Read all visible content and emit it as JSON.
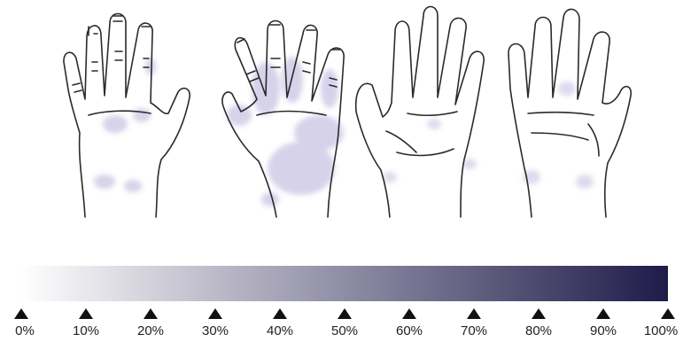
{
  "colors": {
    "scale_start": "#ffffff",
    "scale_end": "#1f1b4a",
    "outline": "#2a2a2a",
    "shading": "#cfcbe6"
  },
  "hands": [
    {
      "view": "left-dorsal",
      "icon": "hand-back-left-icon"
    },
    {
      "view": "right-dorsal",
      "icon": "hand-back-right-icon"
    },
    {
      "view": "left-palmar",
      "icon": "hand-palm-left-icon"
    },
    {
      "view": "right-palmar",
      "icon": "hand-palm-right-icon"
    }
  ],
  "scale": {
    "ticks": [
      {
        "value": 0,
        "label": "0%"
      },
      {
        "value": 10,
        "label": "10%"
      },
      {
        "value": 20,
        "label": "20%"
      },
      {
        "value": 30,
        "label": "30%"
      },
      {
        "value": 40,
        "label": "40%"
      },
      {
        "value": 50,
        "label": "50%"
      },
      {
        "value": 60,
        "label": "60%"
      },
      {
        "value": 70,
        "label": "70%"
      },
      {
        "value": 80,
        "label": "80%"
      },
      {
        "value": 90,
        "label": "90%"
      },
      {
        "value": 100,
        "label": "100%"
      }
    ]
  }
}
